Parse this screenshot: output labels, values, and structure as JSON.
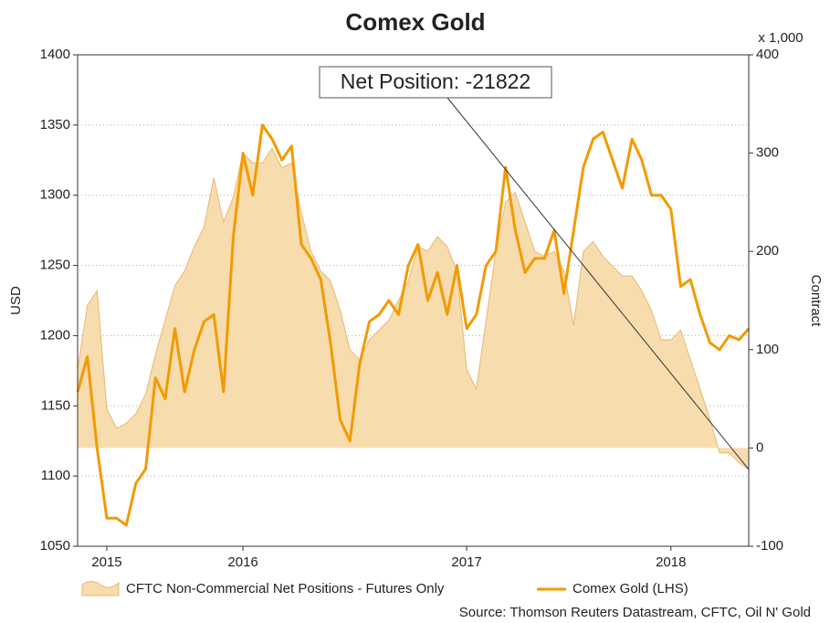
{
  "chart_data": {
    "type": "line",
    "title": "Comex Gold",
    "y_label": "USD",
    "y2_label": "Contract",
    "y2_unit": "x 1,000",
    "annotation": "Net Position: -21822",
    "source": "Source: Thomson Reuters Datastream, CFTC, Oil N' Gold",
    "categories": [
      null,
      null,
      null,
      "2015",
      null,
      null,
      null,
      null,
      null,
      null,
      null,
      null,
      null,
      null,
      null,
      null,
      null,
      "2016",
      null,
      null,
      null,
      null,
      null,
      null,
      null,
      null,
      null,
      null,
      null,
      null,
      null,
      null,
      null,
      null,
      null,
      null,
      null,
      null,
      null,
      null,
      "2017",
      null,
      null,
      null,
      null,
      null,
      null,
      null,
      null,
      null,
      null,
      null,
      null,
      null,
      null,
      null,
      null,
      null,
      null,
      null,
      null,
      "2018",
      null,
      null,
      null,
      null,
      null,
      null,
      null,
      null
    ],
    "series": [
      {
        "name": "CFTC Non-Commercial Net Positions - Futures Only",
        "color": "#f7dcae",
        "axis": "y2",
        "values": [
          80,
          145,
          160,
          40,
          20,
          25,
          35,
          55,
          95,
          130,
          165,
          180,
          205,
          225,
          275,
          230,
          255,
          300,
          290,
          290,
          305,
          285,
          290,
          240,
          200,
          180,
          170,
          140,
          100,
          90,
          110,
          120,
          130,
          150,
          170,
          205,
          200,
          215,
          205,
          180,
          80,
          60,
          130,
          200,
          250,
          260,
          230,
          200,
          195,
          200,
          180,
          125,
          200,
          210,
          195,
          185,
          175,
          175,
          160,
          140,
          110,
          110,
          120,
          90,
          60,
          30,
          -5,
          -5,
          -15,
          -21.822
        ]
      },
      {
        "name": "Comex Gold (LHS)",
        "color": "#f39a00",
        "values": [
          1160,
          1185,
          1120,
          1070,
          1070,
          1065,
          1095,
          1105,
          1170,
          1155,
          1205,
          1160,
          1190,
          1210,
          1215,
          1160,
          1270,
          1330,
          1300,
          1350,
          1340,
          1325,
          1335,
          1265,
          1255,
          1240,
          1195,
          1140,
          1125,
          1180,
          1210,
          1215,
          1225,
          1215,
          1250,
          1265,
          1225,
          1245,
          1215,
          1250,
          1205,
          1215,
          1250,
          1260,
          1320,
          1275,
          1245,
          1255,
          1255,
          1275,
          1230,
          1275,
          1320,
          1340,
          1345,
          1325,
          1305,
          1340,
          1325,
          1300,
          1300,
          1290,
          1235,
          1240,
          1215,
          1195,
          1190,
          1200,
          1197,
          1205
        ]
      }
    ],
    "ylim": [
      1050,
      1400
    ],
    "yticks": [
      1050,
      1100,
      1150,
      1200,
      1250,
      1300,
      1350,
      1400
    ],
    "y2lim": [
      -100,
      400
    ],
    "y2ticks": [
      -100,
      0,
      100,
      200,
      300,
      400
    ],
    "grid": true
  }
}
